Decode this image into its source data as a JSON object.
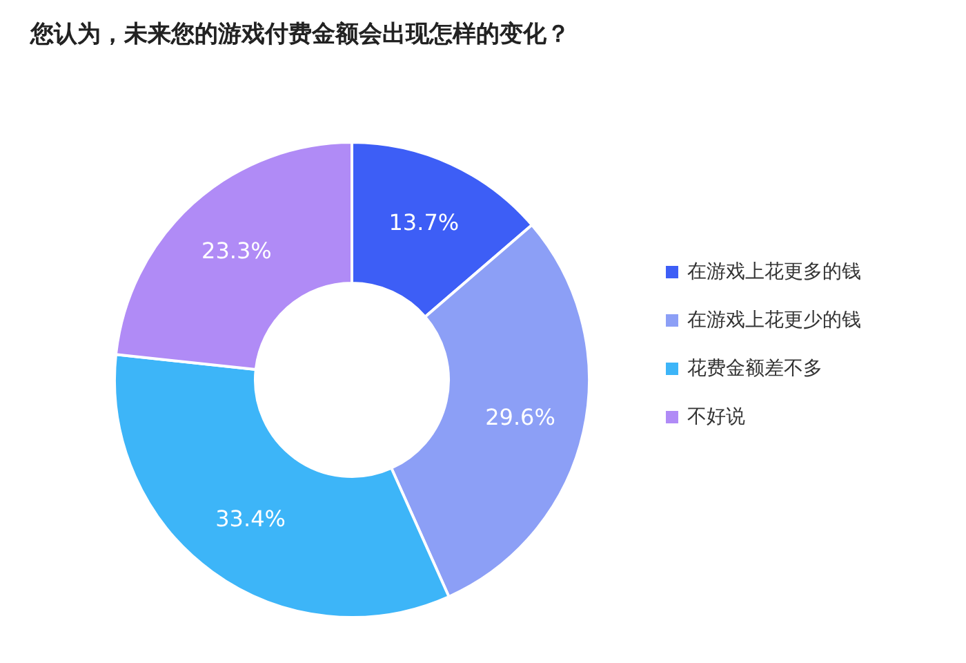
{
  "chart_data": {
    "type": "donut",
    "title": "您认为，未来您的游戏付费金额会出现怎样的变化？",
    "categories": [
      "在游戏上花更多的钱",
      "在游戏上花更少的钱",
      "花费金额差不多",
      "不好说"
    ],
    "values": [
      13.7,
      29.6,
      33.4,
      23.3
    ],
    "value_labels": [
      "13.7%",
      "29.6%",
      "33.4%",
      "23.3%"
    ],
    "colors": [
      "#3d5ef6",
      "#8c9ff6",
      "#3db5f8",
      "#b08bf6"
    ],
    "legend": "right"
  }
}
